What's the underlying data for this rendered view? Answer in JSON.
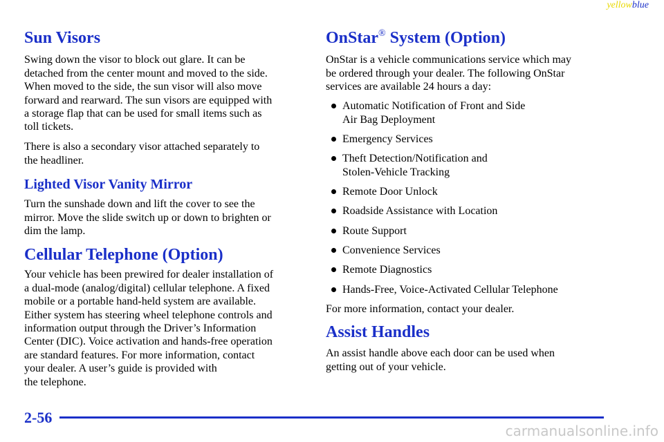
{
  "header": {
    "yellow": "yellow",
    "blue": "blue"
  },
  "left": [
    {
      "heading": "Sun Visors"
    },
    {
      "lines": [
        "Swing down the visor to block out glare. It can be",
        "detached from the center mount and moved to the side.",
        "When moved to the side, the sun visor will also move",
        "forward and rearward. The sun visors are equipped with",
        "a storage flap that can be used for small items such as",
        "toll tickets."
      ]
    },
    {
      "lines": [
        "There is also a secondary visor attached separately to",
        "the headliner."
      ]
    },
    {
      "subheading": "Lighted Visor Vanity Mirror"
    },
    {
      "lines": [
        "Turn the sunshade down and lift the cover to see the",
        "mirror. Move the slide switch up or down to brighten or",
        "dim the lamp."
      ]
    },
    {
      "heading": "Cellular Telephone (Option)"
    },
    {
      "lines": [
        "Your vehicle has been prewired for dealer installation of",
        "a dual-mode (analog/digital) cellular telephone. A fixed",
        "mobile or a portable hand-held system are available.",
        "Either system has steering wheel telephone controls and",
        "information output through the Driver’s Information",
        "Center (DIC). Voice activation and hands-free operation",
        "are standard features. For more information, contact",
        "your dealer. A user’s guide is provided with",
        "the telephone."
      ]
    }
  ],
  "right": [
    {
      "heading": "OnStar",
      "mark": "®",
      "heading_rest": " System (Option)"
    },
    {
      "lines": [
        "OnStar is a vehicle communications service which may",
        "be ordered through your dealer. The following OnStar",
        "services are available 24 hours a day:"
      ]
    },
    {
      "bullet": [
        "Automatic Notification of Front and Side",
        "Air Bag Deployment"
      ]
    },
    {
      "bullet": [
        "Emergency Services"
      ]
    },
    {
      "bullet": [
        "Theft Detection/Notification and",
        "Stolen-Vehicle Tracking"
      ]
    },
    {
      "bullet": [
        "Remote Door Unlock"
      ]
    },
    {
      "bullet": [
        "Roadside Assistance with Location"
      ]
    },
    {
      "bullet": [
        "Route Support"
      ]
    },
    {
      "bullet": [
        "Convenience Services"
      ]
    },
    {
      "bullet": [
        "Remote Diagnostics"
      ]
    },
    {
      "bullet": [
        "Hands-Free, Voice-Activated Cellular Telephone"
      ]
    },
    {
      "lines": [
        "For more information, contact your dealer."
      ]
    },
    {
      "heading": "Assist Handles"
    },
    {
      "lines": [
        "An assist handle above each door can be used when",
        "getting out of your vehicle."
      ]
    }
  ],
  "footer": {
    "page": "2-56",
    "watermark": "carmanualsonline.info"
  }
}
